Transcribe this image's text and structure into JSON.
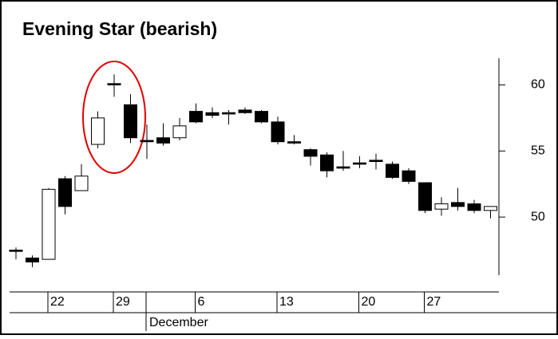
{
  "chart_data": {
    "type": "candlestick",
    "title": "Evening Star (bearish)",
    "categories": [
      null,
      null,
      "22",
      null,
      null,
      null,
      "29",
      null,
      null,
      null,
      null,
      "6",
      null,
      null,
      null,
      null,
      "13",
      null,
      null,
      null,
      null,
      "20",
      null,
      null,
      null,
      "27",
      null,
      null,
      null,
      null
    ],
    "month_label": "December",
    "open": [
      47.5,
      46.9,
      46.8,
      52.9,
      52.0,
      55.5,
      60.1,
      58.5,
      55.8,
      56.0,
      56.0,
      58.0,
      57.9,
      57.9,
      58.1,
      58.0,
      57.2,
      55.7,
      55.1,
      54.7,
      53.8,
      54.1,
      54.3,
      54.0,
      53.5,
      52.6,
      50.6,
      51.1,
      51.0,
      50.5
    ],
    "high": [
      47.7,
      47.1,
      52.2,
      53.1,
      54.0,
      58.0,
      60.8,
      59.3,
      57.0,
      57.1,
      57.5,
      58.6,
      58.3,
      58.1,
      58.3,
      58.1,
      57.6,
      56.2,
      55.2,
      54.9,
      55.0,
      54.6,
      54.8,
      54.2,
      53.7,
      52.6,
      51.5,
      52.2,
      51.3,
      50.8
    ],
    "low": [
      46.8,
      46.2,
      46.8,
      50.2,
      52.0,
      55.2,
      59.1,
      55.6,
      54.4,
      55.4,
      55.8,
      57.1,
      57.5,
      57.0,
      57.8,
      57.1,
      55.5,
      55.5,
      53.9,
      53.0,
      53.5,
      53.7,
      53.6,
      52.9,
      52.5,
      50.3,
      50.1,
      50.5,
      50.3,
      49.9
    ],
    "close": [
      47.4,
      46.6,
      52.1,
      50.8,
      53.1,
      57.5,
      60.0,
      56.0,
      55.7,
      55.6,
      56.9,
      57.2,
      57.7,
      57.8,
      57.9,
      57.2,
      55.7,
      55.6,
      54.6,
      53.5,
      53.7,
      54.0,
      54.2,
      53.0,
      52.7,
      50.5,
      51.0,
      50.8,
      50.5,
      50.8
    ],
    "ylim": [
      45.6,
      61.9
    ],
    "yticks": [
      50,
      55,
      60
    ],
    "up_color": "#ffffff",
    "down_color": "#000000"
  }
}
